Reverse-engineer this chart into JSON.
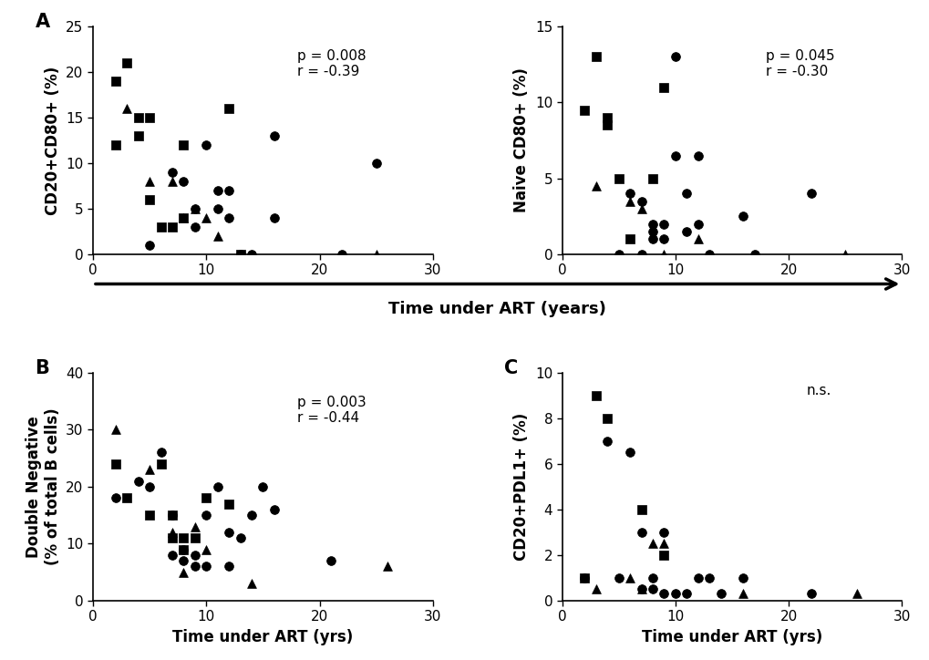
{
  "panel_A_left": {
    "ylabel": "CD20+CD80+ (%)",
    "xlabel": "",
    "ylim": [
      0,
      25
    ],
    "xlim": [
      0,
      30
    ],
    "yticks": [
      0,
      5,
      10,
      15,
      20,
      25
    ],
    "xticks": [
      0,
      10,
      20,
      30
    ],
    "pval": "p = 0.008",
    "rval": "r = -0.39",
    "squares_x": [
      2,
      2,
      3,
      4,
      4,
      5,
      5,
      6,
      7,
      8,
      8,
      12,
      13
    ],
    "squares_y": [
      19,
      12,
      21,
      15,
      13,
      15,
      6,
      3,
      3,
      12,
      4,
      16,
      0
    ],
    "triangles_x": [
      3,
      5,
      7,
      8,
      9,
      10,
      11,
      25
    ],
    "triangles_y": [
      16,
      8,
      8,
      4,
      5,
      4,
      2,
      0
    ],
    "circles_x": [
      5,
      7,
      8,
      9,
      9,
      10,
      11,
      11,
      12,
      12,
      13,
      14,
      16,
      16,
      22,
      25
    ],
    "circles_y": [
      1,
      9,
      8,
      5,
      3,
      12,
      7,
      5,
      7,
      4,
      0,
      0,
      13,
      4,
      0,
      10
    ]
  },
  "panel_A_right": {
    "ylabel": "Naive CD80+ (%)",
    "xlabel": "",
    "ylim": [
      0,
      15
    ],
    "xlim": [
      0,
      30
    ],
    "yticks": [
      0,
      5,
      10,
      15
    ],
    "xticks": [
      0,
      10,
      20,
      30
    ],
    "pval": "p = 0.045",
    "rval": "r = -0.30",
    "squares_x": [
      2,
      3,
      4,
      4,
      5,
      6,
      8,
      9
    ],
    "squares_y": [
      9.5,
      13,
      9,
      8.5,
      5,
      1,
      5,
      11
    ],
    "triangles_x": [
      3,
      6,
      7,
      9,
      12,
      25
    ],
    "triangles_y": [
      4.5,
      3.5,
      3,
      0,
      1,
      0
    ],
    "circles_x": [
      5,
      6,
      7,
      7,
      8,
      8,
      8,
      9,
      9,
      10,
      10,
      11,
      11,
      12,
      12,
      13,
      16,
      17,
      22
    ],
    "circles_y": [
      0,
      4,
      3.5,
      0,
      2,
      1.5,
      1,
      1,
      2,
      13,
      6.5,
      4,
      1.5,
      2,
      6.5,
      0,
      2.5,
      0,
      4
    ]
  },
  "panel_B": {
    "ylabel": "Double Negative\n(% of total B cells)",
    "xlabel": "Time under ART (yrs)",
    "ylim": [
      0,
      40
    ],
    "xlim": [
      0,
      30
    ],
    "yticks": [
      0,
      10,
      20,
      30,
      40
    ],
    "xticks": [
      0,
      10,
      20,
      30
    ],
    "pval": "p = 0.003",
    "rval": "r = -0.44",
    "squares_x": [
      2,
      3,
      5,
      6,
      7,
      7,
      8,
      8,
      9,
      10,
      12
    ],
    "squares_y": [
      24,
      18,
      15,
      24,
      11,
      15,
      11,
      9,
      11,
      18,
      17
    ],
    "triangles_x": [
      2,
      5,
      7,
      8,
      9,
      10,
      14,
      26
    ],
    "triangles_y": [
      30,
      23,
      12,
      5,
      13,
      9,
      3,
      6
    ],
    "circles_x": [
      2,
      4,
      5,
      6,
      7,
      7,
      8,
      8,
      9,
      9,
      10,
      10,
      11,
      12,
      12,
      13,
      14,
      15,
      16,
      21
    ],
    "circles_y": [
      18,
      21,
      20,
      26,
      15,
      8,
      9,
      7,
      8,
      6,
      15,
      6,
      20,
      6,
      12,
      11,
      15,
      20,
      16,
      7
    ]
  },
  "panel_C": {
    "ylabel": "CD20+PDL1+ (%)",
    "xlabel": "Time under ART (yrs)",
    "ylim": [
      0,
      10
    ],
    "xlim": [
      0,
      30
    ],
    "yticks": [
      0,
      2,
      4,
      6,
      8,
      10
    ],
    "xticks": [
      0,
      10,
      20,
      30
    ],
    "annotation": "n.s.",
    "squares_x": [
      2,
      3,
      4,
      7,
      9
    ],
    "squares_y": [
      1,
      9,
      8,
      4,
      2
    ],
    "triangles_x": [
      3,
      6,
      7,
      8,
      9,
      16,
      26
    ],
    "triangles_y": [
      0.5,
      1,
      0.5,
      2.5,
      2.5,
      0.3,
      0.3
    ],
    "circles_x": [
      2,
      4,
      5,
      6,
      7,
      7,
      8,
      8,
      9,
      9,
      10,
      11,
      12,
      13,
      14,
      16,
      22
    ],
    "circles_y": [
      1,
      7,
      1,
      6.5,
      3,
      0.5,
      0.5,
      1,
      0.3,
      3,
      0.3,
      0.3,
      1,
      1,
      0.3,
      1,
      0.3
    ]
  },
  "marker_size": 50,
  "marker_color": "black",
  "font_family": "Arial",
  "label_fontsize": 12,
  "tick_fontsize": 11,
  "stat_fontsize": 11,
  "panel_label_fontsize": 15,
  "arrow_color": "black",
  "shared_xlabel": "Time under ART (years)",
  "shared_xlabel_fontsize": 13,
  "background_color": "#ffffff"
}
